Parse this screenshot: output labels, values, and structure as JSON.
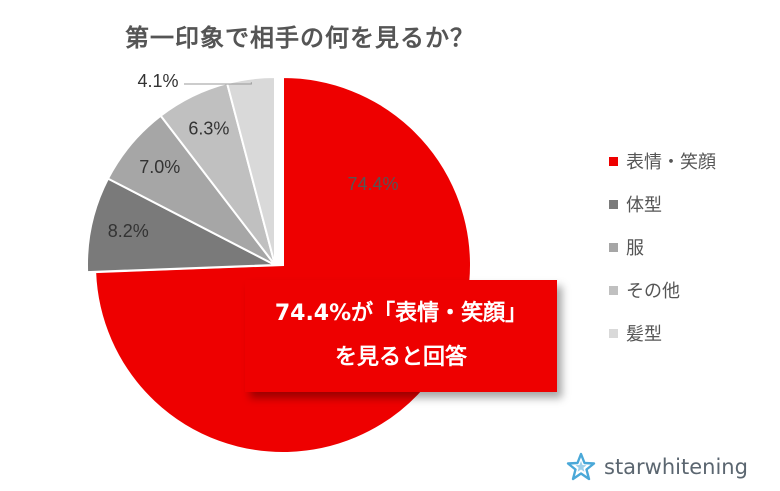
{
  "chart_data": {
    "type": "pie",
    "title": "第一印象で相手の何を見るか？",
    "categories": [
      "表情・笑顔",
      "体型",
      "服",
      "その他",
      "髪型"
    ],
    "values": [
      74.4,
      8.2,
      7.0,
      6.3,
      4.1
    ],
    "labels": [
      "74.4%",
      "8.2%",
      "7.0%",
      "6.3%",
      "4.1%"
    ],
    "colors": [
      "#ee0000",
      "#7a7a7a",
      "#a6a6a6",
      "#c0c0c0",
      "#d9d9d9"
    ],
    "legend_position": "right",
    "exploded_slice": "表情・笑顔"
  },
  "callout": {
    "line1": "74.4%が「表情・笑顔」",
    "line2": "を見ると回答"
  },
  "brand": {
    "name": "starwhitening",
    "icon": "star-logo-icon",
    "color": "#4aa8d8"
  }
}
